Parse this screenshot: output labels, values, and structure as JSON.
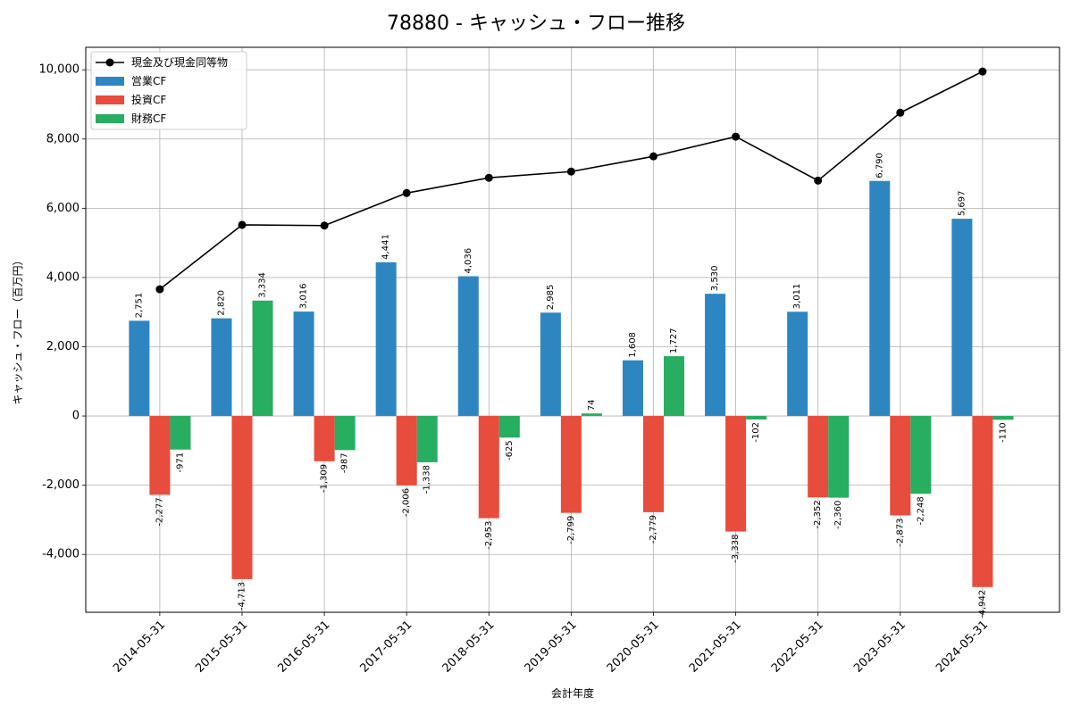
{
  "chart_data": {
    "type": "bar",
    "title": "78880 - キャッシュ・フロー推移",
    "xlabel": "会計年度",
    "ylabel": "キャッシュ・フロー（百万円）",
    "categories": [
      "2014-05-31",
      "2015-05-31",
      "2016-05-31",
      "2017-05-31",
      "2018-05-31",
      "2019-05-31",
      "2020-05-31",
      "2021-05-31",
      "2022-05-31",
      "2023-05-31",
      "2024-05-31"
    ],
    "series": [
      {
        "name": "現金及び現金同等物",
        "type": "line",
        "color": "#000000",
        "values": [
          3660,
          5520,
          5500,
          6440,
          6880,
          7060,
          7500,
          8070,
          6800,
          8760,
          9950
        ]
      },
      {
        "name": "営業CF",
        "type": "bar",
        "color": "#2e86c1",
        "values": [
          2751,
          2820,
          3016,
          4441,
          4036,
          2985,
          1608,
          3530,
          3011,
          6790,
          5697
        ]
      },
      {
        "name": "投資CF",
        "type": "bar",
        "color": "#e74c3c",
        "values": [
          -2277,
          -4713,
          -1309,
          -2006,
          -2953,
          -2799,
          -2779,
          -3338,
          -2352,
          -2873,
          -4942
        ]
      },
      {
        "name": "財務CF",
        "type": "bar",
        "color": "#27ae60",
        "values": [
          -971,
          3334,
          -987,
          -1338,
          -625,
          74,
          1727,
          -102,
          -2360,
          -2248,
          -110
        ]
      }
    ],
    "ylim": [
      -5670,
      10650
    ],
    "yticks": [
      -4000,
      -2000,
      0,
      2000,
      4000,
      6000,
      8000,
      10000
    ],
    "grid": true,
    "legend": "top-left",
    "data_labels": true
  }
}
